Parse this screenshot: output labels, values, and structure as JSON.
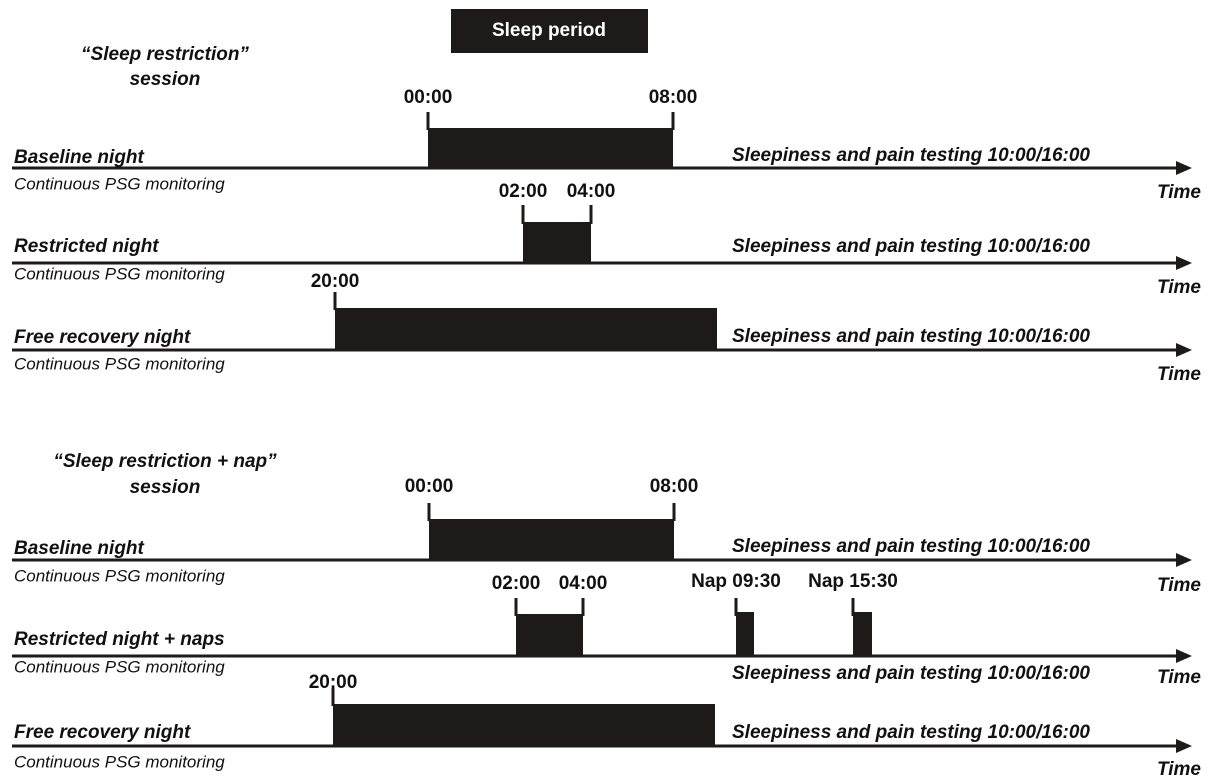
{
  "legend": "Sleep period",
  "sessions": [
    {
      "title": [
        "“Sleep restriction”",
        "session"
      ],
      "rows": [
        {
          "label": "Baseline night",
          "sublabel": "Continuous PSG monitoring",
          "times": [
            "00:00",
            "08:00"
          ],
          "testing": "Sleepiness and pain testing 10:00/16:00",
          "axis": "Time"
        },
        {
          "label": "Restricted night",
          "sublabel": "Continuous PSG monitoring",
          "times": [
            "02:00",
            "04:00"
          ],
          "testing": "Sleepiness and pain testing 10:00/16:00",
          "axis": "Time"
        },
        {
          "label": "Free recovery night",
          "sublabel": "Continuous PSG monitoring",
          "times": [
            "20:00"
          ],
          "testing": "Sleepiness and pain testing 10:00/16:00",
          "axis": "Time"
        }
      ]
    },
    {
      "title": [
        "“Sleep restriction + nap”",
        "session"
      ],
      "rows": [
        {
          "label": "Baseline night",
          "sublabel": "Continuous PSG monitoring",
          "times": [
            "00:00",
            "08:00"
          ],
          "testing": "Sleepiness and pain testing 10:00/16:00",
          "axis": "Time"
        },
        {
          "label": "Restricted night + naps",
          "sublabel": "Continuous PSG monitoring",
          "times": [
            "02:00",
            "04:00",
            "Nap 09:30",
            "Nap 15:30"
          ],
          "testing": "Sleepiness and pain testing 10:00/16:00",
          "axis": "Time"
        },
        {
          "label": "Free recovery night",
          "sublabel": "Continuous PSG monitoring",
          "times": [
            "20:00"
          ],
          "testing": "Sleepiness and pain testing 10:00/16:00",
          "axis": "Time"
        }
      ]
    }
  ]
}
